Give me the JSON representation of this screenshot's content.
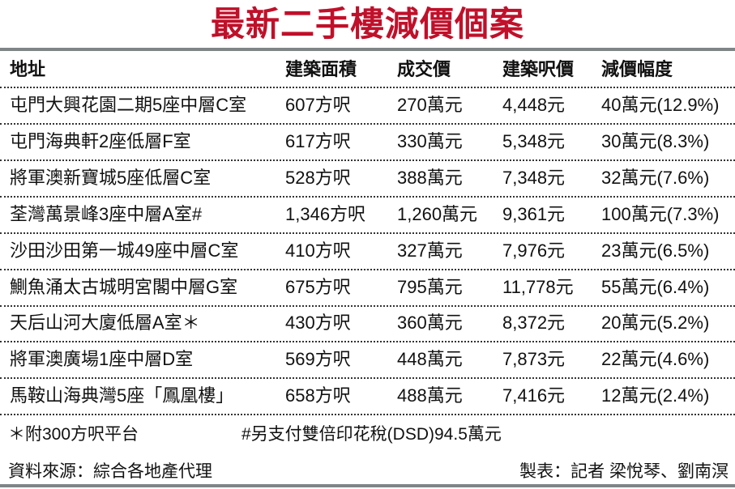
{
  "title": "最新二手樓減價個案",
  "colors": {
    "title": "#c0102a",
    "rule": "#7f8587"
  },
  "table": {
    "headers": [
      "地址",
      "建築面積",
      "成交價",
      "建築呎價",
      "減價幅度"
    ],
    "rows": [
      [
        "屯門大興花園二期5座中層C室",
        "607方呎",
        "270萬元",
        "4,448元",
        "40萬元(12.9%)"
      ],
      [
        "屯門海典軒2座低層F室",
        "617方呎",
        "330萬元",
        "5,348元",
        "30萬元(8.3%)"
      ],
      [
        "將軍澳新寶城5座低層C室",
        "528方呎",
        "388萬元",
        "7,348元",
        "32萬元(7.6%)"
      ],
      [
        "荃灣萬景峰3座中層A室#",
        "1,346方呎",
        "1,260萬元",
        "9,361元",
        "100萬元(7.3%)"
      ],
      [
        "沙田沙田第一城49座中層C室",
        "410方呎",
        "327萬元",
        "7,976元",
        "23萬元(6.5%)"
      ],
      [
        "鰂魚涌太古城明宮閣中層G室",
        "675方呎",
        "795萬元",
        "11,778元",
        "55萬元(6.4%)"
      ],
      [
        "天后山河大廈低層A室＊",
        "430方呎",
        "360萬元",
        "8,372元",
        "20萬元(5.2%)"
      ],
      [
        "將軍澳廣場1座中層D室",
        "569方呎",
        "448萬元",
        "7,873元",
        "22萬元(4.6%)"
      ],
      [
        "馬鞍山海典灣5座「鳳凰樓」",
        "658方呎",
        "488萬元",
        "7,416元",
        "12萬元(2.4%)"
      ]
    ]
  },
  "notes": {
    "star": "＊附300方呎平台",
    "hash": "#另支付雙倍印花稅(DSD)94.5萬元"
  },
  "source": "資料來源：綜合各地產代理",
  "credit": "製表：記者 梁悅琴、劉南溟"
}
